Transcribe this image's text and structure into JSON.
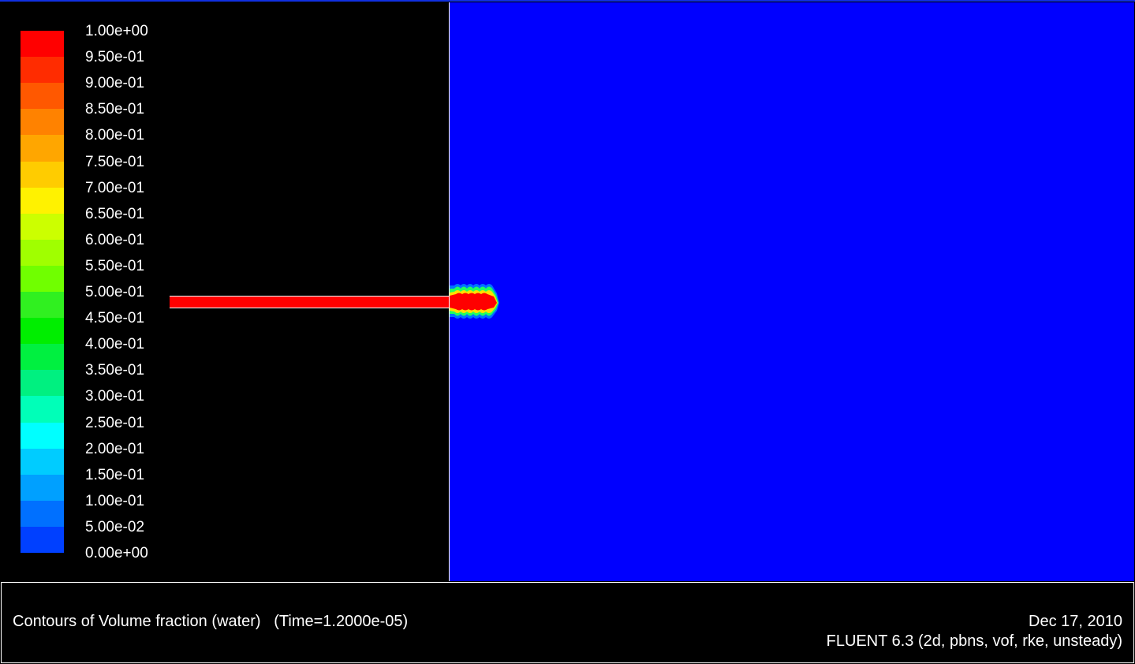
{
  "chart_data": {
    "type": "heatmap",
    "title": "Contours of Volume fraction (water)",
    "time_label": "(Time=1.2000e-05)",
    "colorbar": {
      "levels": [
        "1.00e+00",
        "9.50e-01",
        "9.00e-01",
        "8.50e-01",
        "8.00e-01",
        "7.50e-01",
        "7.00e-01",
        "6.50e-01",
        "6.00e-01",
        "5.50e-01",
        "5.00e-01",
        "4.50e-01",
        "4.00e-01",
        "3.50e-01",
        "3.00e-01",
        "2.50e-01",
        "2.00e-01",
        "1.50e-01",
        "1.00e-01",
        "5.00e-02",
        "0.00e+00"
      ],
      "range": [
        0,
        1
      ],
      "band_colors_top_to_bottom": [
        "#ff0000",
        "#ff2c00",
        "#ff5800",
        "#ff8200",
        "#ffa600",
        "#ffcc00",
        "#fff200",
        "#ccff00",
        "#a0ff00",
        "#70ff00",
        "#30f020",
        "#00ee00",
        "#00f040",
        "#00f080",
        "#00ffb8",
        "#00ffff",
        "#00ccff",
        "#00a0ff",
        "#0070ff",
        "#0040ff",
        "#0010ff"
      ]
    },
    "field_description_colors": {
      "background_fluid": "#0000ff",
      "jet": "#ff0000"
    }
  },
  "footer": {
    "left": "Contours of Volume fraction (water)   (Time=1.2000e-05)",
    "date": "Dec 17, 2010",
    "solver": "FLUENT 6.3 (2d, pbns, vof, rke, unsteady)"
  }
}
